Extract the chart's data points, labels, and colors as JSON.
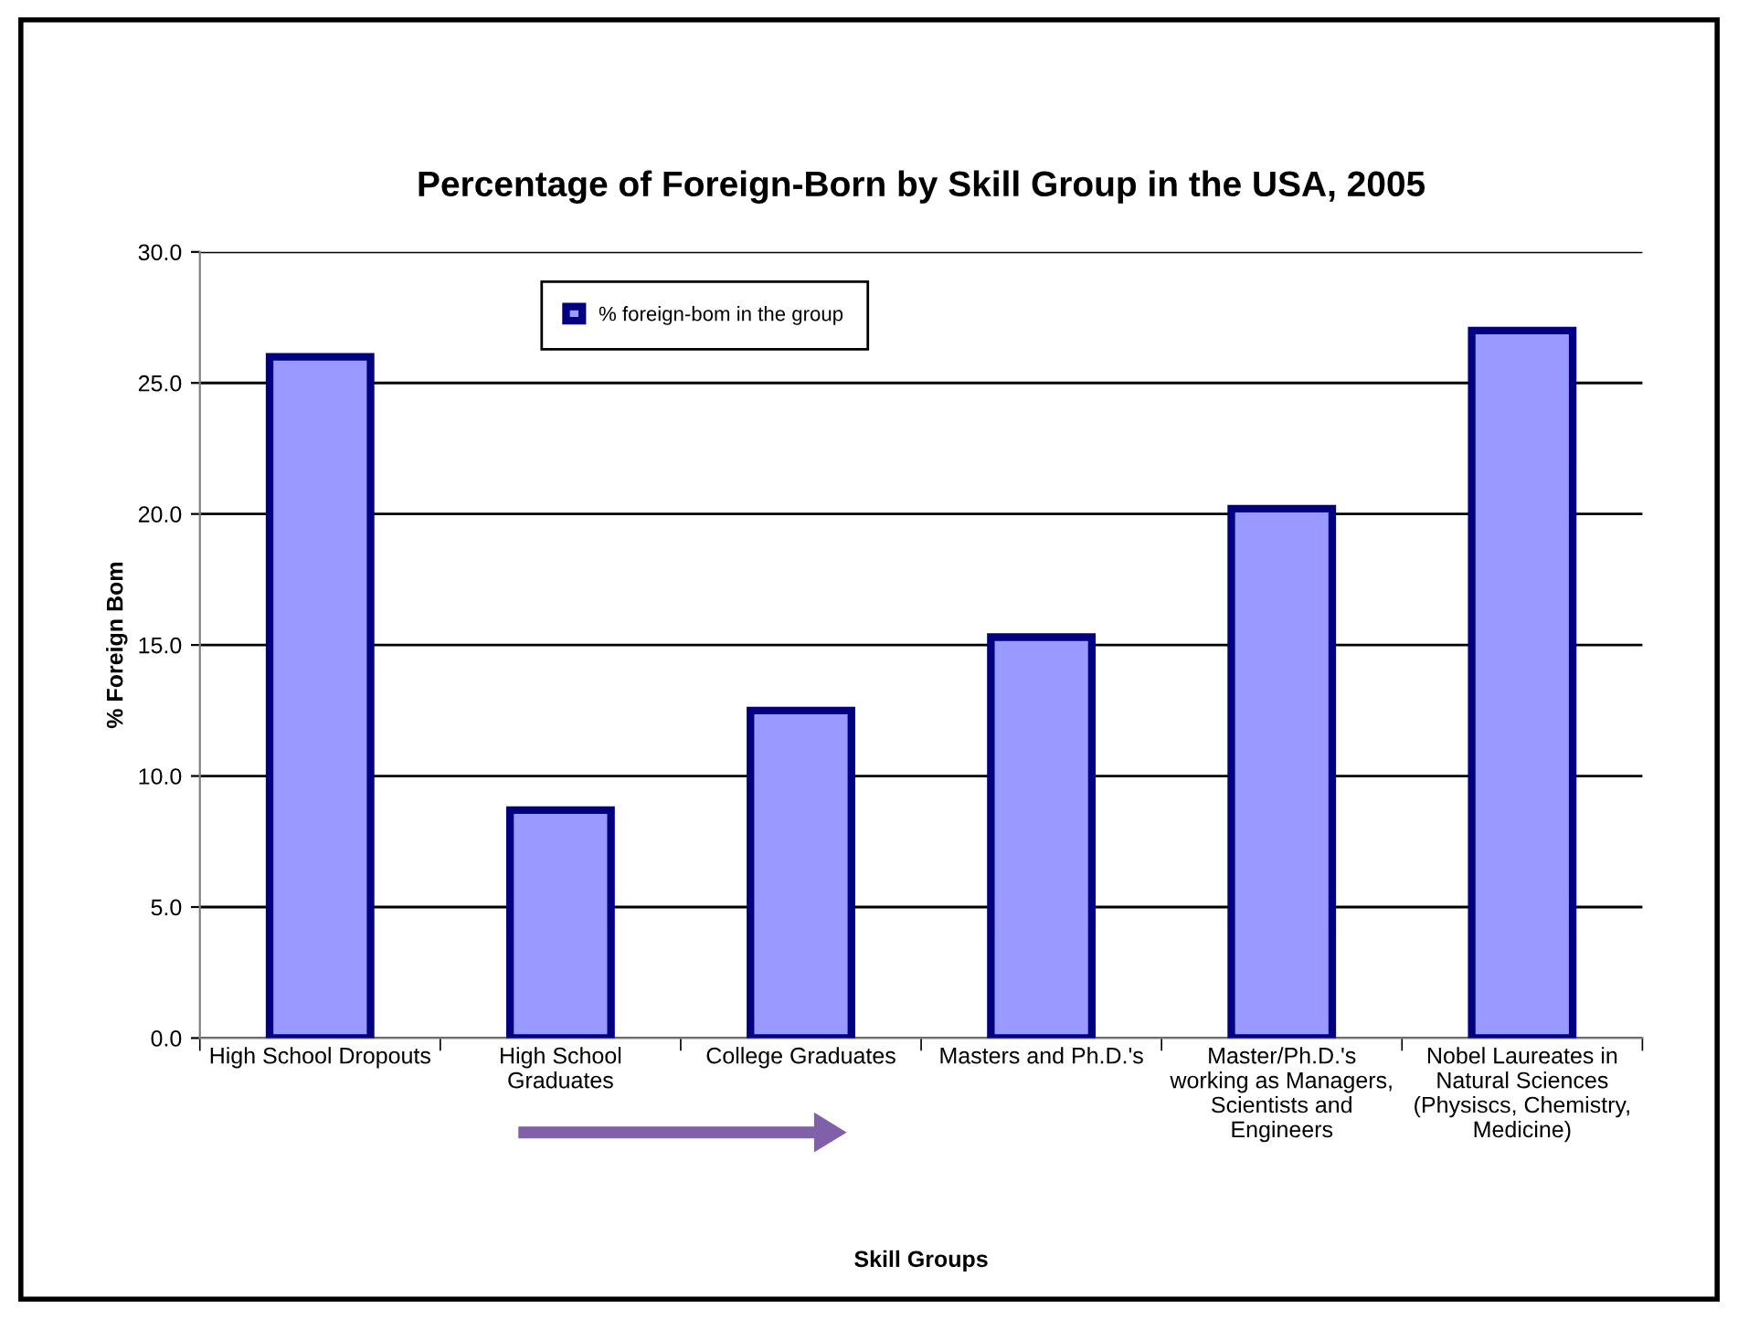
{
  "chart_data": {
    "type": "bar",
    "title": "Percentage of Foreign-Born by Skill Group in the USA, 2005",
    "xlabel": "Skill Groups",
    "ylabel": "% Foreign Bom",
    "categories": [
      "High School Dropouts",
      "High School\nGraduates",
      "College Graduates",
      "Masters and Ph.D.'s",
      "Master/Ph.D.'s\nworking as Managers,\nScientists and\nEngineers",
      "Nobel Laureates in\nNatural Sciences\n(Physiscs, Chemistry,\nMedicine)"
    ],
    "series": [
      {
        "name": "% foreign-bom in the group",
        "color": "#9999ff",
        "values": [
          26.0,
          8.7,
          12.5,
          15.3,
          20.2,
          27.0
        ]
      }
    ],
    "ylim": [
      0,
      30
    ],
    "yticks": [
      {
        "value": 0,
        "label": "0.0"
      },
      {
        "value": 5,
        "label": "5.0"
      },
      {
        "value": 10,
        "label": "10.0"
      },
      {
        "value": 15,
        "label": "15.0"
      },
      {
        "value": 20,
        "label": "20.0"
      },
      {
        "value": 25,
        "label": "25.0"
      },
      {
        "value": 30,
        "label": "30.0"
      }
    ],
    "grid": "y",
    "legend": "top"
  }
}
